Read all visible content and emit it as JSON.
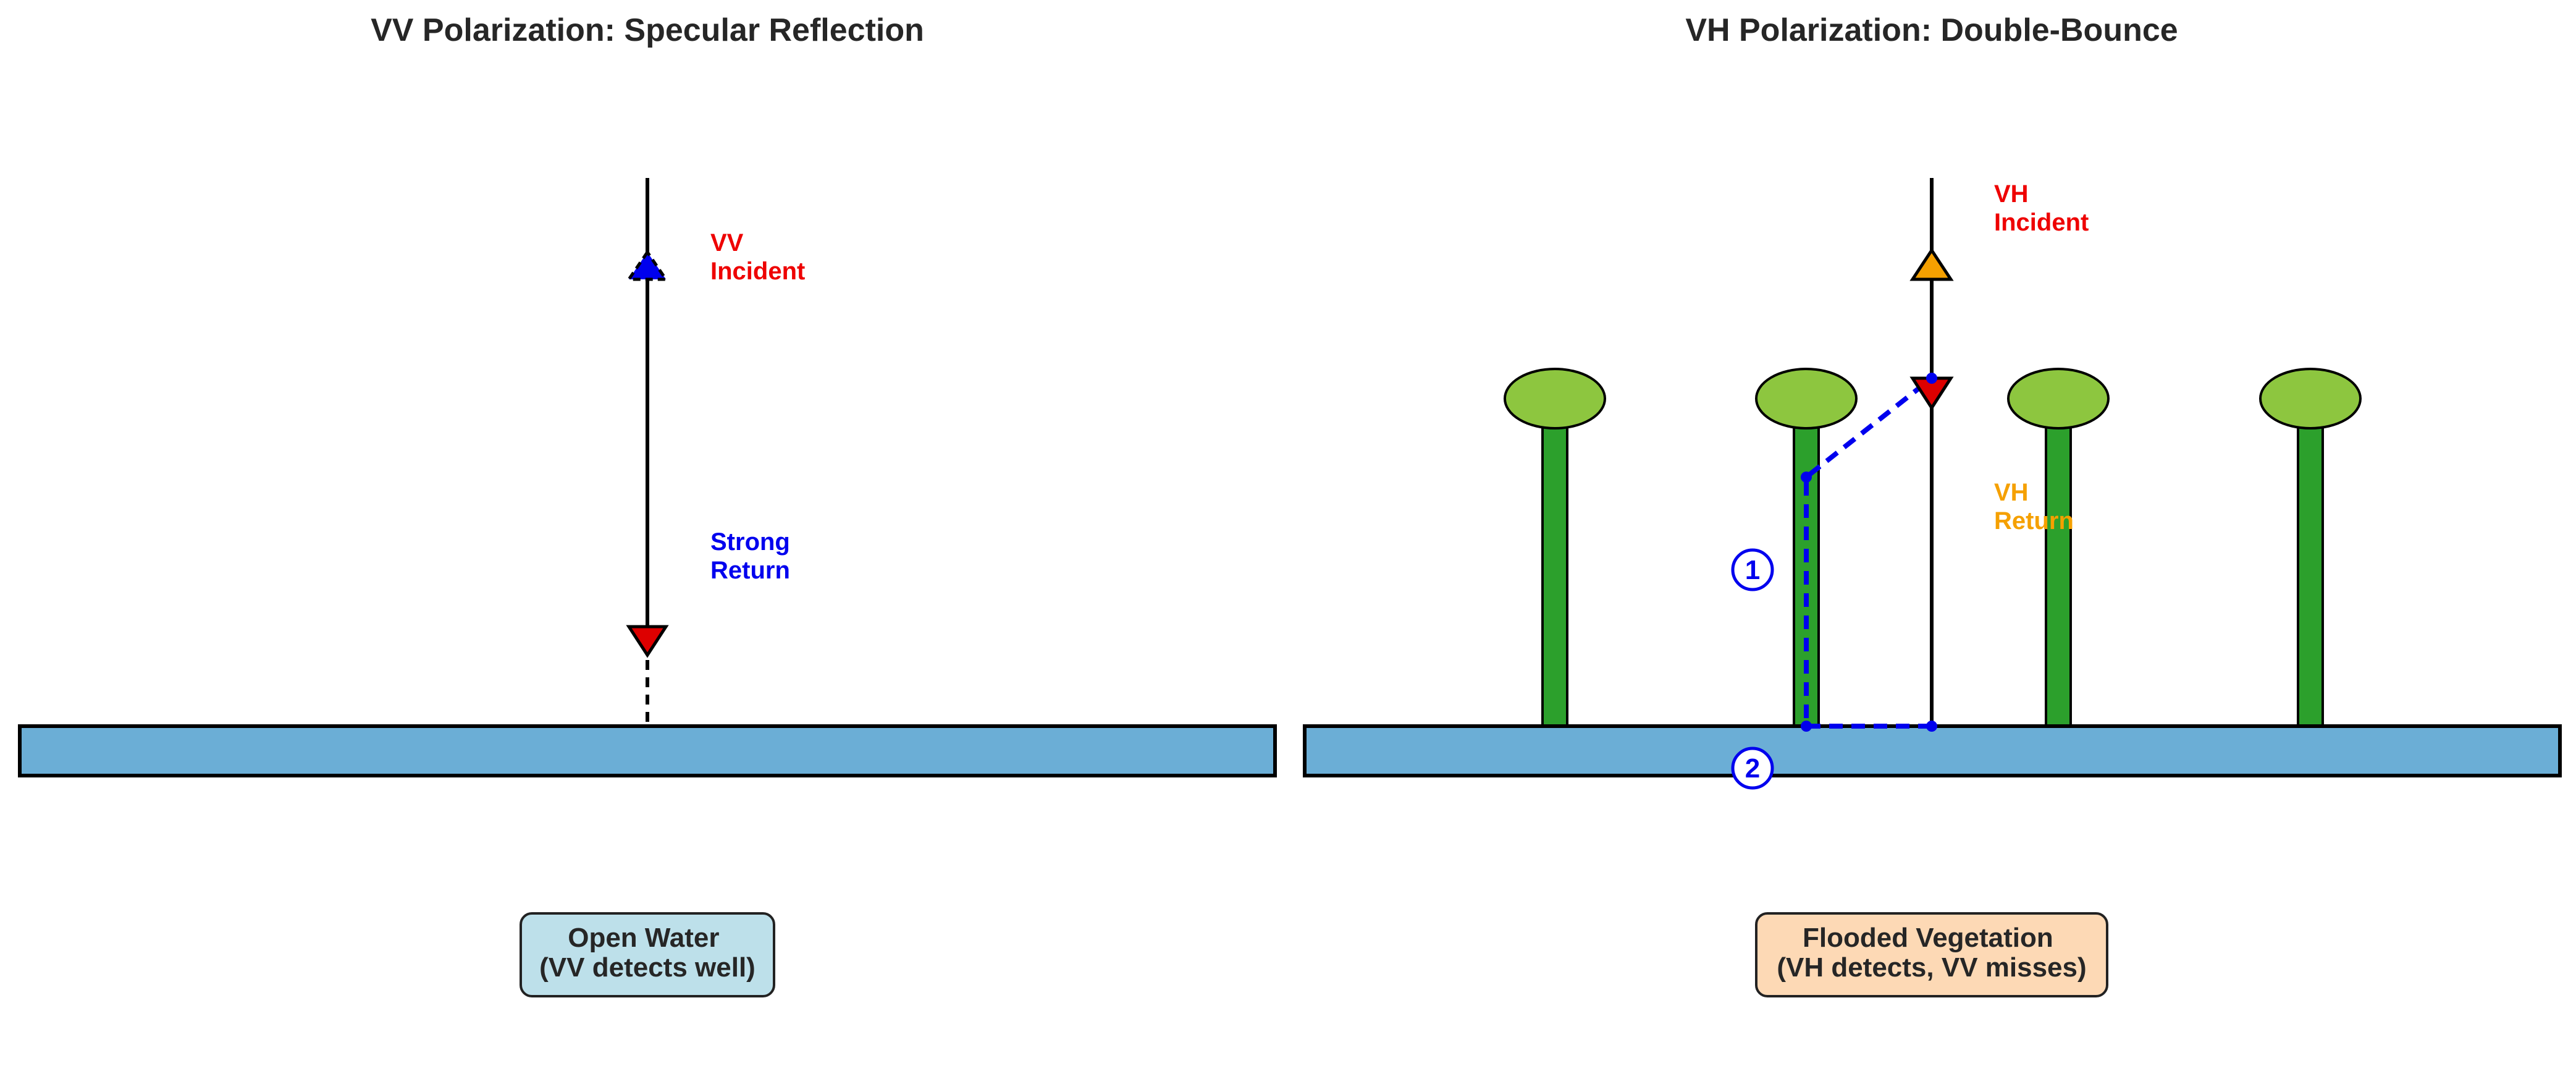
{
  "panels": {
    "vv": {
      "title": "VV Polarization: Specular Reflection",
      "incident_label": [
        "VV",
        "Incident"
      ],
      "return_label": [
        "Strong",
        "Return"
      ],
      "box_label": [
        "Open Water",
        "(VV detects well)"
      ]
    },
    "vh": {
      "title": "VH Polarization: Double-Bounce",
      "incident_label": [
        "VH",
        "Incident"
      ],
      "return_label": [
        "VH",
        "Return"
      ],
      "box_label": [
        "Flooded Vegetation",
        "(VH detects, VV misses)"
      ],
      "bounce_markers": [
        "1",
        "2"
      ]
    }
  },
  "colors": {
    "water": "#6baed6",
    "stem": "#2ca02c",
    "canopy": "#8dc63f",
    "red_label": "#ee0000",
    "blue_label": "#0000ee",
    "orange_label": "#f5a000",
    "box_vv": "#bde0ea",
    "box_vh": "#fdd9b5",
    "arrow_red": "#dd0000",
    "arrow_blue": "#0000ee",
    "arrow_orange": "#f5a000"
  }
}
